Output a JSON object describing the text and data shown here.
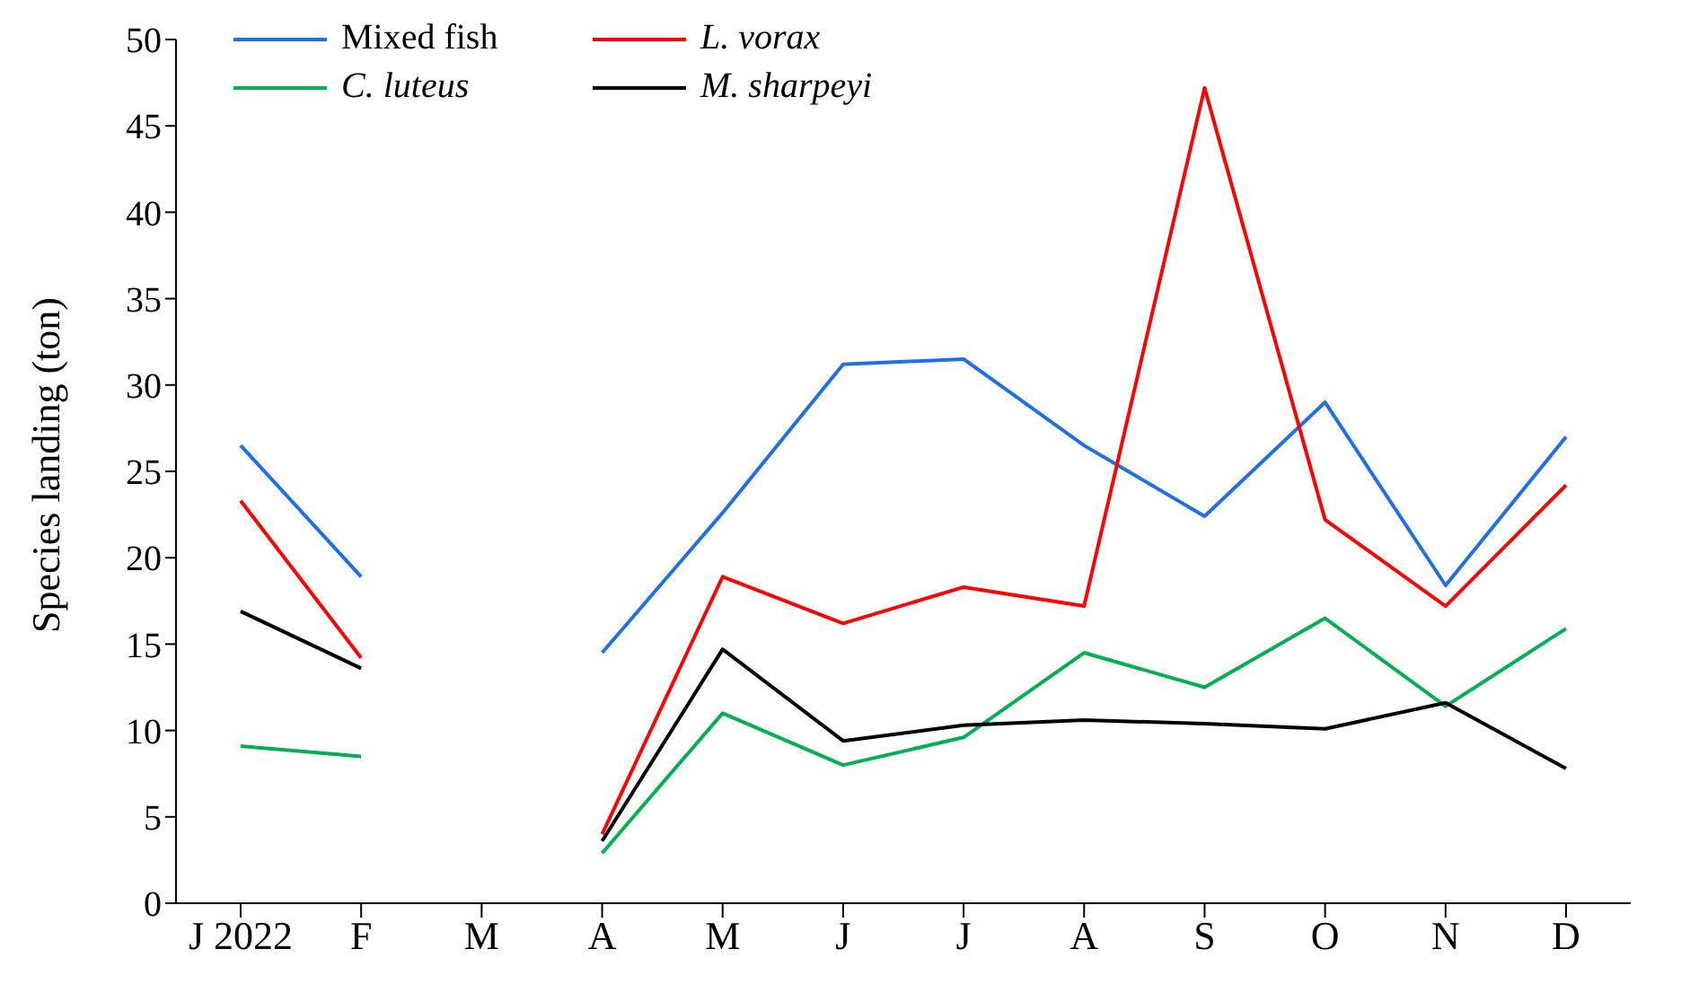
{
  "chart_data": {
    "type": "line",
    "ylabel": "Species landing (ton)",
    "categories": [
      "J 2022",
      "F",
      "M",
      "A",
      "M",
      "J",
      "J",
      "A",
      "S",
      "O",
      "N",
      "D"
    ],
    "series": [
      {
        "name": "Mixed fish",
        "color": "#1f6fe6",
        "values": [
          26.5,
          18.9,
          null,
          14.5,
          22.6,
          31.2,
          31.5,
          26.5,
          22.4,
          29.0,
          18.4,
          27.0
        ]
      },
      {
        "name": "L. vorax",
        "color": "#ff0000",
        "values": [
          23.3,
          14.2,
          null,
          4.0,
          18.9,
          16.2,
          18.3,
          17.2,
          47.2,
          22.2,
          17.2,
          24.2
        ]
      },
      {
        "name": "C. luteus",
        "color": "#00b050",
        "values": [
          9.1,
          8.5,
          null,
          2.9,
          11.0,
          8.0,
          9.6,
          14.5,
          12.5,
          16.5,
          11.4,
          15.9
        ]
      },
      {
        "name": "M. sharpeyi",
        "color": "#000000",
        "values": [
          16.9,
          13.6,
          null,
          3.6,
          14.7,
          9.4,
          10.3,
          10.6,
          10.4,
          10.1,
          11.6,
          7.8
        ]
      }
    ],
    "ylim": [
      0,
      50
    ],
    "yticks": [
      0,
      5,
      10,
      15,
      20,
      25,
      30,
      35,
      40,
      45,
      50
    ],
    "grid": false,
    "legend": "top",
    "marker": "none",
    "line_style": "solid"
  }
}
